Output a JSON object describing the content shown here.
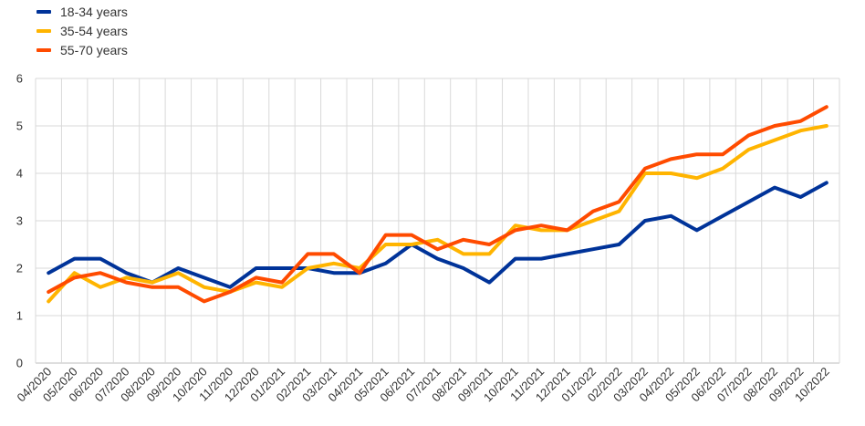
{
  "chart_data": {
    "type": "line",
    "title": "",
    "xlabel": "",
    "ylabel": "",
    "ylim": [
      0,
      6
    ],
    "yticks": [
      0,
      1,
      2,
      3,
      4,
      5,
      6
    ],
    "grid": true,
    "legend_position": "top-left",
    "categories": [
      "04/2020",
      "05/2020",
      "06/2020",
      "07/2020",
      "08/2020",
      "09/2020",
      "10/2020",
      "11/2020",
      "12/2020",
      "01/2021",
      "02/2021",
      "03/2021",
      "04/2021",
      "05/2021",
      "06/2021",
      "07/2021",
      "08/2021",
      "09/2021",
      "10/2021",
      "11/2021",
      "12/2021",
      "01/2022",
      "02/2022",
      "03/2022",
      "04/2022",
      "05/2022",
      "06/2022",
      "07/2022",
      "08/2022",
      "09/2022",
      "10/2022"
    ],
    "series": [
      {
        "name": "18-34 years",
        "color": "#003399",
        "values": [
          1.9,
          2.2,
          2.2,
          1.9,
          1.7,
          2.0,
          1.8,
          1.6,
          2.0,
          2.0,
          2.0,
          1.9,
          1.9,
          2.1,
          2.5,
          2.2,
          2.0,
          1.7,
          2.2,
          2.2,
          2.3,
          2.4,
          2.5,
          3.0,
          3.1,
          2.8,
          3.1,
          3.4,
          3.7,
          3.5,
          3.8
        ]
      },
      {
        "name": "35-54 years",
        "color": "#FFB400",
        "values": [
          1.3,
          1.9,
          1.6,
          1.8,
          1.7,
          1.9,
          1.6,
          1.5,
          1.7,
          1.6,
          2.0,
          2.1,
          2.0,
          2.5,
          2.5,
          2.6,
          2.3,
          2.3,
          2.9,
          2.8,
          2.8,
          3.0,
          3.2,
          4.0,
          4.0,
          3.9,
          4.1,
          4.5,
          4.7,
          4.9,
          5.0
        ]
      },
      {
        "name": "55-70 years",
        "color": "#FF4B00",
        "values": [
          1.5,
          1.8,
          1.9,
          1.7,
          1.6,
          1.6,
          1.3,
          1.5,
          1.8,
          1.7,
          2.3,
          2.3,
          1.9,
          2.7,
          2.7,
          2.4,
          2.6,
          2.5,
          2.8,
          2.9,
          2.8,
          3.2,
          3.4,
          4.1,
          4.3,
          4.4,
          4.4,
          4.8,
          5.0,
          5.1,
          5.4
        ]
      }
    ]
  }
}
